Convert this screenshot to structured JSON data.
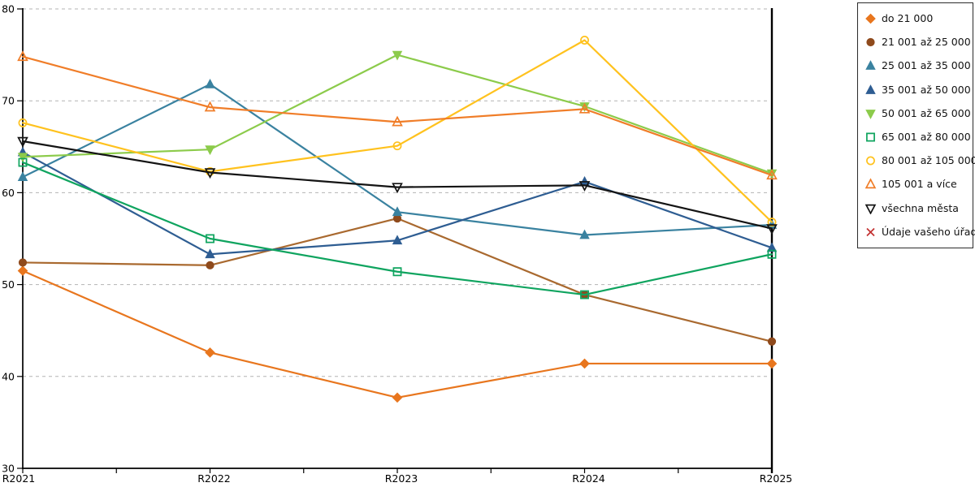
{
  "chart_data": {
    "type": "line",
    "title": "",
    "xlabel": "",
    "ylabel": "",
    "categories": [
      "R2021",
      "R2022",
      "R2023",
      "R2024",
      "R2025"
    ],
    "ylim": [
      30,
      80
    ],
    "ytick_step": 10,
    "ytick_labels": [
      "30",
      "40",
      "50",
      "60",
      "70",
      "80"
    ],
    "grid": "horizontal-dashed",
    "grid_color": "#b3b3b3",
    "axis_color": "#000000",
    "background_color": "#ffffff",
    "legend_position": "right",
    "series": [
      {
        "name": "do 21 000",
        "color": "#E8761E",
        "marker": "diamond",
        "marker_fill": "filled",
        "values": [
          51.5,
          42.6,
          37.7,
          41.4,
          41.4
        ]
      },
      {
        "name": "21 001 až 25 000",
        "color": "#8F4A1C",
        "line_color": "#A9692F",
        "marker": "circle",
        "marker_fill": "filled",
        "values": [
          52.4,
          52.1,
          57.2,
          48.9,
          43.8
        ]
      },
      {
        "name": "25 001 až 35 000",
        "color": "#3A82A0",
        "marker": "triangle-up",
        "marker_fill": "filled",
        "values": [
          61.7,
          71.8,
          57.9,
          55.4,
          56.5
        ]
      },
      {
        "name": "35 001 až 50 000",
        "color": "#2E5D92",
        "marker": "triangle-up",
        "marker_fill": "filled",
        "values": [
          64.4,
          53.3,
          54.8,
          61.2,
          54.0
        ]
      },
      {
        "name": "50 001 až 65 000",
        "color": "#8CCB4B",
        "marker": "triangle-down",
        "marker_fill": "filled",
        "values": [
          63.9,
          64.7,
          75.0,
          69.4,
          62.1
        ]
      },
      {
        "name": "65 001 až 80 000",
        "color": "#0FA45F",
        "marker": "square",
        "marker_fill": "open",
        "values": [
          63.3,
          55.0,
          51.4,
          48.9,
          53.3
        ]
      },
      {
        "name": "80 001 až 105 000",
        "color": "#FFC21E",
        "marker": "circle",
        "marker_fill": "open",
        "values": [
          67.6,
          62.3,
          65.1,
          76.6,
          56.8
        ]
      },
      {
        "name": "105 001 a více",
        "color": "#F07D28",
        "marker": "triangle-up",
        "marker_fill": "open",
        "values": [
          74.8,
          69.3,
          67.7,
          69.1,
          61.9
        ]
      },
      {
        "name": "všechna města",
        "color": "#141414",
        "marker": "triangle-down",
        "marker_fill": "open",
        "values": [
          65.6,
          62.2,
          60.6,
          60.8,
          56.1
        ]
      },
      {
        "name": "Údaje vašeho úřadu",
        "color": "#C23030",
        "marker": "x",
        "marker_fill": "open",
        "values": [],
        "legend_only": true
      }
    ]
  }
}
